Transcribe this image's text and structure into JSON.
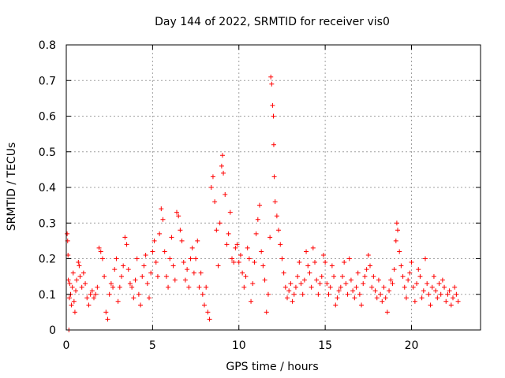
{
  "chart_data": {
    "type": "scatter",
    "title": "Day 144 of 2022, SRMTID for receiver vis0",
    "xlabel": "GPS time / hours",
    "ylabel": "SRMTID / TECUs",
    "xlim": [
      0,
      24
    ],
    "ylim": [
      0,
      0.8
    ],
    "xticks": [
      0,
      5,
      10,
      15,
      20
    ],
    "yticks": [
      0,
      0.1,
      0.2,
      0.3,
      0.4,
      0.5,
      0.6,
      0.7,
      0.8
    ],
    "xtick_labels": [
      "0",
      "5",
      "10",
      "15",
      "20"
    ],
    "ytick_labels": [
      "0",
      "0.1",
      "0.2",
      "0.3",
      "0.4",
      "0.5",
      "0.6",
      "0.7",
      "0.8"
    ],
    "grid": true,
    "marker": "+",
    "color": "#ff0000",
    "series": [
      {
        "name": "vis0",
        "points": [
          [
            0.05,
            0.27
          ],
          [
            0.08,
            0.25
          ],
          [
            0.1,
            0.21
          ],
          [
            0.12,
            0.14
          ],
          [
            0.15,
            0.0
          ],
          [
            0.18,
            0.09
          ],
          [
            0.2,
            0.13
          ],
          [
            0.25,
            0.1
          ],
          [
            0.3,
            0.07
          ],
          [
            0.35,
            0.12
          ],
          [
            0.4,
            0.16
          ],
          [
            0.45,
            0.08
          ],
          [
            0.5,
            0.05
          ],
          [
            0.55,
            0.11
          ],
          [
            0.6,
            0.14
          ],
          [
            0.7,
            0.19
          ],
          [
            0.75,
            0.18
          ],
          [
            0.8,
            0.15
          ],
          [
            0.9,
            0.12
          ],
          [
            1.0,
            0.16
          ],
          [
            1.1,
            0.13
          ],
          [
            1.2,
            0.09
          ],
          [
            1.3,
            0.07
          ],
          [
            1.4,
            0.1
          ],
          [
            1.5,
            0.11
          ],
          [
            1.6,
            0.09
          ],
          [
            1.7,
            0.1
          ],
          [
            1.8,
            0.12
          ],
          [
            1.9,
            0.23
          ],
          [
            2.0,
            0.22
          ],
          [
            2.1,
            0.2
          ],
          [
            2.2,
            0.15
          ],
          [
            2.3,
            0.05
          ],
          [
            2.4,
            0.03
          ],
          [
            2.5,
            0.1
          ],
          [
            2.6,
            0.13
          ],
          [
            2.7,
            0.12
          ],
          [
            2.8,
            0.17
          ],
          [
            2.9,
            0.2
          ],
          [
            3.0,
            0.08
          ],
          [
            3.1,
            0.12
          ],
          [
            3.2,
            0.15
          ],
          [
            3.3,
            0.18
          ],
          [
            3.4,
            0.26
          ],
          [
            3.5,
            0.24
          ],
          [
            3.6,
            0.17
          ],
          [
            3.7,
            0.13
          ],
          [
            3.8,
            0.12
          ],
          [
            3.9,
            0.09
          ],
          [
            4.0,
            0.14
          ],
          [
            4.1,
            0.2
          ],
          [
            4.2,
            0.1
          ],
          [
            4.3,
            0.07
          ],
          [
            4.4,
            0.15
          ],
          [
            4.5,
            0.18
          ],
          [
            4.6,
            0.21
          ],
          [
            4.7,
            0.13
          ],
          [
            4.8,
            0.09
          ],
          [
            4.9,
            0.16
          ],
          [
            5.0,
            0.22
          ],
          [
            5.1,
            0.25
          ],
          [
            5.2,
            0.19
          ],
          [
            5.3,
            0.15
          ],
          [
            5.4,
            0.27
          ],
          [
            5.5,
            0.34
          ],
          [
            5.6,
            0.31
          ],
          [
            5.7,
            0.22
          ],
          [
            5.8,
            0.15
          ],
          [
            5.9,
            0.12
          ],
          [
            6.0,
            0.2
          ],
          [
            6.1,
            0.26
          ],
          [
            6.2,
            0.18
          ],
          [
            6.3,
            0.14
          ],
          [
            6.4,
            0.33
          ],
          [
            6.5,
            0.32
          ],
          [
            6.6,
            0.28
          ],
          [
            6.7,
            0.25
          ],
          [
            6.8,
            0.19
          ],
          [
            6.9,
            0.14
          ],
          [
            7.0,
            0.17
          ],
          [
            7.1,
            0.12
          ],
          [
            7.2,
            0.2
          ],
          [
            7.3,
            0.23
          ],
          [
            7.4,
            0.16
          ],
          [
            7.5,
            0.2
          ],
          [
            7.6,
            0.25
          ],
          [
            7.7,
            0.12
          ],
          [
            7.8,
            0.16
          ],
          [
            7.9,
            0.1
          ],
          [
            8.0,
            0.07
          ],
          [
            8.1,
            0.12
          ],
          [
            8.2,
            0.05
          ],
          [
            8.3,
            0.03
          ],
          [
            8.4,
            0.4
          ],
          [
            8.5,
            0.43
          ],
          [
            8.6,
            0.36
          ],
          [
            8.7,
            0.28
          ],
          [
            8.8,
            0.18
          ],
          [
            8.9,
            0.3
          ],
          [
            9.0,
            0.46
          ],
          [
            9.05,
            0.49
          ],
          [
            9.1,
            0.44
          ],
          [
            9.2,
            0.38
          ],
          [
            9.3,
            0.24
          ],
          [
            9.4,
            0.27
          ],
          [
            9.5,
            0.33
          ],
          [
            9.6,
            0.2
          ],
          [
            9.7,
            0.19
          ],
          [
            9.8,
            0.23
          ],
          [
            9.9,
            0.24
          ],
          [
            10.0,
            0.19
          ],
          [
            10.1,
            0.21
          ],
          [
            10.2,
            0.16
          ],
          [
            10.3,
            0.12
          ],
          [
            10.4,
            0.15
          ],
          [
            10.5,
            0.23
          ],
          [
            10.6,
            0.2
          ],
          [
            10.7,
            0.08
          ],
          [
            10.8,
            0.13
          ],
          [
            10.9,
            0.19
          ],
          [
            11.0,
            0.27
          ],
          [
            11.1,
            0.31
          ],
          [
            11.2,
            0.35
          ],
          [
            11.3,
            0.22
          ],
          [
            11.4,
            0.18
          ],
          [
            11.5,
            0.14
          ],
          [
            11.6,
            0.05
          ],
          [
            11.7,
            0.1
          ],
          [
            11.8,
            0.26
          ],
          [
            11.85,
            0.71
          ],
          [
            11.9,
            0.69
          ],
          [
            11.95,
            0.63
          ],
          [
            12.0,
            0.6
          ],
          [
            12.02,
            0.52
          ],
          [
            12.05,
            0.43
          ],
          [
            12.1,
            0.36
          ],
          [
            12.2,
            0.32
          ],
          [
            12.3,
            0.28
          ],
          [
            12.4,
            0.24
          ],
          [
            12.5,
            0.2
          ],
          [
            12.6,
            0.16
          ],
          [
            12.7,
            0.12
          ],
          [
            12.8,
            0.09
          ],
          [
            12.9,
            0.11
          ],
          [
            13.0,
            0.13
          ],
          [
            13.1,
            0.08
          ],
          [
            13.2,
            0.1
          ],
          [
            13.3,
            0.12
          ],
          [
            13.4,
            0.15
          ],
          [
            13.5,
            0.19
          ],
          [
            13.6,
            0.13
          ],
          [
            13.7,
            0.1
          ],
          [
            13.8,
            0.14
          ],
          [
            13.9,
            0.22
          ],
          [
            14.0,
            0.18
          ],
          [
            14.1,
            0.16
          ],
          [
            14.2,
            0.12
          ],
          [
            14.3,
            0.23
          ],
          [
            14.4,
            0.19
          ],
          [
            14.5,
            0.14
          ],
          [
            14.6,
            0.1
          ],
          [
            14.7,
            0.13
          ],
          [
            14.8,
            0.15
          ],
          [
            14.9,
            0.21
          ],
          [
            15.0,
            0.19
          ],
          [
            15.1,
            0.13
          ],
          [
            15.2,
            0.1
          ],
          [
            15.3,
            0.12
          ],
          [
            15.4,
            0.18
          ],
          [
            15.5,
            0.15
          ],
          [
            15.6,
            0.07
          ],
          [
            15.7,
            0.09
          ],
          [
            15.8,
            0.11
          ],
          [
            15.9,
            0.12
          ],
          [
            16.0,
            0.15
          ],
          [
            16.1,
            0.19
          ],
          [
            16.2,
            0.13
          ],
          [
            16.3,
            0.1
          ],
          [
            16.4,
            0.2
          ],
          [
            16.5,
            0.14
          ],
          [
            16.6,
            0.11
          ],
          [
            16.7,
            0.09
          ],
          [
            16.8,
            0.12
          ],
          [
            16.9,
            0.16
          ],
          [
            17.0,
            0.1
          ],
          [
            17.1,
            0.07
          ],
          [
            17.2,
            0.13
          ],
          [
            17.3,
            0.15
          ],
          [
            17.4,
            0.17
          ],
          [
            17.5,
            0.21
          ],
          [
            17.6,
            0.18
          ],
          [
            17.7,
            0.12
          ],
          [
            17.8,
            0.15
          ],
          [
            17.9,
            0.11
          ],
          [
            18.0,
            0.09
          ],
          [
            18.1,
            0.14
          ],
          [
            18.2,
            0.1
          ],
          [
            18.3,
            0.08
          ],
          [
            18.4,
            0.12
          ],
          [
            18.5,
            0.09
          ],
          [
            18.6,
            0.05
          ],
          [
            18.7,
            0.11
          ],
          [
            18.8,
            0.14
          ],
          [
            18.9,
            0.13
          ],
          [
            19.0,
            0.17
          ],
          [
            19.1,
            0.25
          ],
          [
            19.15,
            0.3
          ],
          [
            19.2,
            0.28
          ],
          [
            19.3,
            0.22
          ],
          [
            19.4,
            0.18
          ],
          [
            19.5,
            0.15
          ],
          [
            19.6,
            0.12
          ],
          [
            19.7,
            0.09
          ],
          [
            19.8,
            0.14
          ],
          [
            19.9,
            0.16
          ],
          [
            20.0,
            0.19
          ],
          [
            20.1,
            0.12
          ],
          [
            20.2,
            0.08
          ],
          [
            20.3,
            0.13
          ],
          [
            20.4,
            0.17
          ],
          [
            20.5,
            0.15
          ],
          [
            20.6,
            0.09
          ],
          [
            20.7,
            0.11
          ],
          [
            20.8,
            0.2
          ],
          [
            20.9,
            0.13
          ],
          [
            21.0,
            0.1
          ],
          [
            21.1,
            0.07
          ],
          [
            21.2,
            0.12
          ],
          [
            21.3,
            0.15
          ],
          [
            21.4,
            0.11
          ],
          [
            21.5,
            0.09
          ],
          [
            21.6,
            0.13
          ],
          [
            21.7,
            0.1
          ],
          [
            21.8,
            0.14
          ],
          [
            21.9,
            0.12
          ],
          [
            22.0,
            0.08
          ],
          [
            22.1,
            0.1
          ],
          [
            22.2,
            0.11
          ],
          [
            22.3,
            0.07
          ],
          [
            22.4,
            0.09
          ],
          [
            22.5,
            0.12
          ],
          [
            22.6,
            0.1
          ],
          [
            22.7,
            0.08
          ]
        ]
      }
    ]
  }
}
